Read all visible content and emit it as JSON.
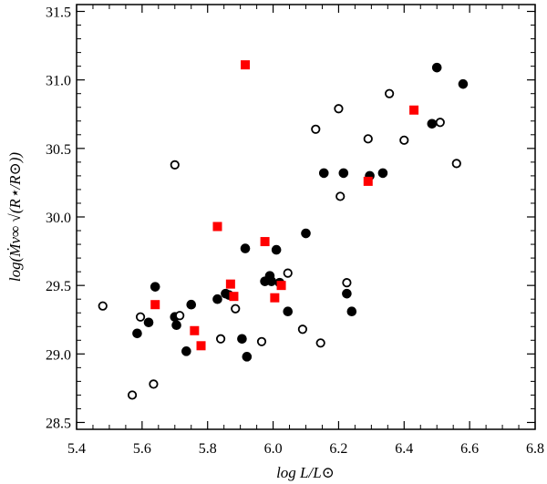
{
  "chart_data": {
    "type": "scatter",
    "title": "",
    "xlabel": "log L/L⊙",
    "ylabel": "log(Ṁv∞ √(R⋆/R⊙))",
    "xlim": [
      5.4,
      6.8
    ],
    "ylim": [
      28.45,
      31.55
    ],
    "xticks": [
      5.4,
      5.6,
      5.8,
      6.0,
      6.2,
      6.4,
      6.6,
      6.8
    ],
    "yticks": [
      28.5,
      29.0,
      29.5,
      30.0,
      30.5,
      31.0,
      31.5
    ],
    "xtick_labels": [
      "5.4",
      "5.6",
      "5.8",
      "6.0",
      "6.2",
      "6.4",
      "6.6",
      "6.8"
    ],
    "ytick_labels": [
      "28.5",
      "29.0",
      "29.5",
      "30.0",
      "30.5",
      "31.0",
      "31.5"
    ],
    "grid": false,
    "series": [
      {
        "marker": "filled-circle",
        "color": "#000000",
        "points": [
          [
            5.585,
            29.15
          ],
          [
            5.62,
            29.23
          ],
          [
            5.64,
            29.49
          ],
          [
            5.7,
            29.27
          ],
          [
            5.705,
            29.21
          ],
          [
            5.735,
            29.02
          ],
          [
            5.75,
            29.36
          ],
          [
            5.83,
            29.4
          ],
          [
            5.855,
            29.44
          ],
          [
            5.865,
            29.43
          ],
          [
            5.905,
            29.11
          ],
          [
            5.915,
            29.77
          ],
          [
            5.92,
            28.98
          ],
          [
            5.975,
            29.53
          ],
          [
            5.99,
            29.57
          ],
          [
            5.995,
            29.53
          ],
          [
            6.01,
            29.76
          ],
          [
            6.02,
            29.52
          ],
          [
            6.045,
            29.31
          ],
          [
            6.1,
            29.88
          ],
          [
            6.155,
            30.32
          ],
          [
            6.215,
            30.32
          ],
          [
            6.225,
            29.44
          ],
          [
            6.24,
            29.31
          ],
          [
            6.295,
            30.3
          ],
          [
            6.335,
            30.32
          ],
          [
            6.485,
            30.68
          ],
          [
            6.5,
            31.09
          ],
          [
            6.58,
            30.97
          ]
        ]
      },
      {
        "marker": "open-circle",
        "color": "#000000",
        "points": [
          [
            5.48,
            29.35
          ],
          [
            5.57,
            28.7
          ],
          [
            5.595,
            29.27
          ],
          [
            5.635,
            28.78
          ],
          [
            5.7,
            30.38
          ],
          [
            5.715,
            29.28
          ],
          [
            5.84,
            29.11
          ],
          [
            5.885,
            29.33
          ],
          [
            5.965,
            29.09
          ],
          [
            6.045,
            29.59
          ],
          [
            6.09,
            29.18
          ],
          [
            6.13,
            30.64
          ],
          [
            6.145,
            29.08
          ],
          [
            6.2,
            30.79
          ],
          [
            6.205,
            30.15
          ],
          [
            6.225,
            29.52
          ],
          [
            6.29,
            30.57
          ],
          [
            6.355,
            30.9
          ],
          [
            6.4,
            30.56
          ],
          [
            6.51,
            30.69
          ],
          [
            6.56,
            30.39
          ]
        ]
      },
      {
        "marker": "square",
        "color": "#ff0000",
        "points": [
          [
            5.64,
            29.36
          ],
          [
            5.76,
            29.17
          ],
          [
            5.78,
            29.06
          ],
          [
            5.83,
            29.93
          ],
          [
            5.87,
            29.51
          ],
          [
            5.88,
            29.42
          ],
          [
            5.915,
            31.11
          ],
          [
            5.975,
            29.82
          ],
          [
            6.005,
            29.41
          ],
          [
            6.025,
            29.5
          ],
          [
            6.29,
            30.26
          ],
          [
            6.43,
            30.78
          ]
        ]
      }
    ]
  }
}
